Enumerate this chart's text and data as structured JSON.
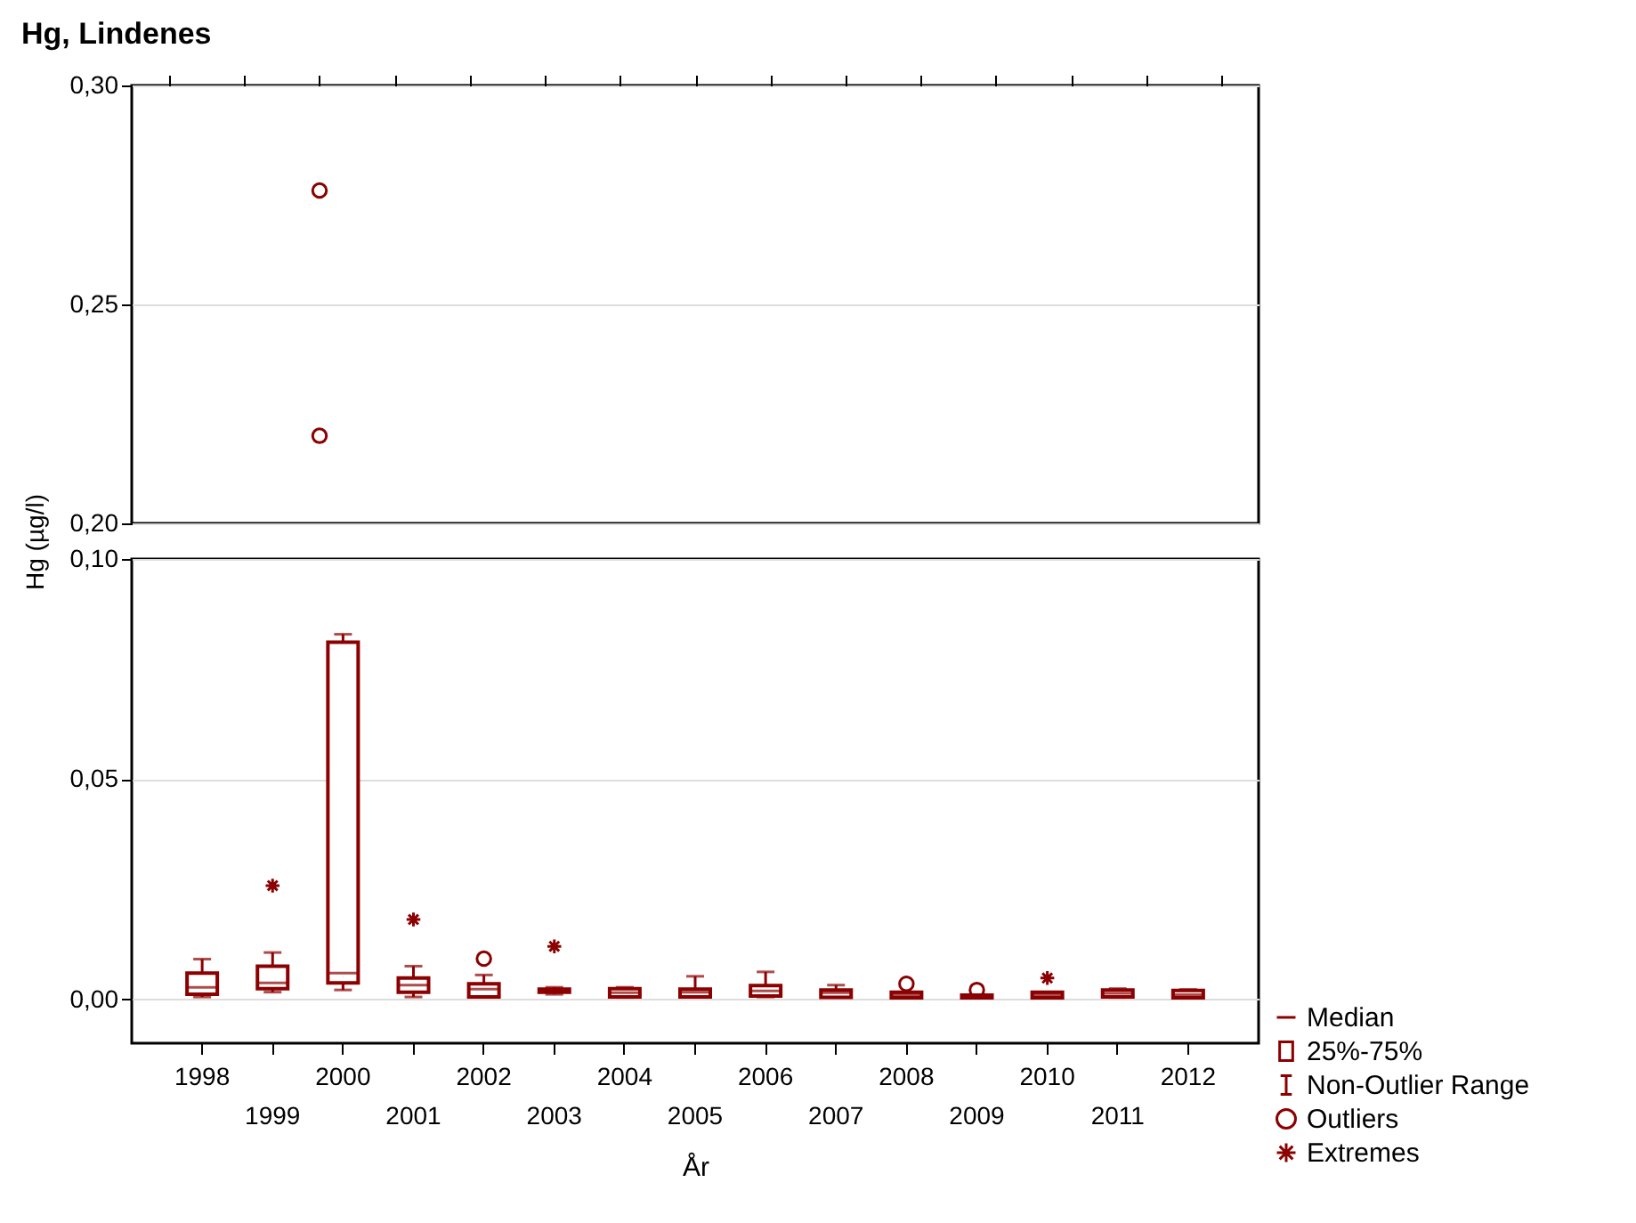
{
  "chart_data": [
    {
      "type": "scatter",
      "title": "Hg, Lindenes",
      "categories": [
        "1998",
        "1999",
        "2000",
        "2001",
        "2002",
        "2003",
        "2004",
        "2005",
        "2006",
        "2007",
        "2008",
        "2009",
        "2010",
        "2011",
        "2012"
      ],
      "ylim": [
        0.2,
        0.3
      ],
      "yticks": [
        {
          "value": 0.2,
          "label": "0,20"
        },
        {
          "value": 0.25,
          "label": "0,25"
        },
        {
          "value": 0.3,
          "label": "0,30"
        }
      ],
      "grid": "y",
      "tick_labels": "y",
      "marker": "circle",
      "series": [
        {
          "color": "#8b0000",
          "values": [
            null,
            null,
            0.276,
            null,
            null,
            null,
            null,
            null,
            null,
            null,
            null,
            null,
            null,
            null,
            null
          ]
        },
        {
          "color": "#8b0000",
          "values": [
            null,
            null,
            0.22,
            null,
            null,
            null,
            null,
            null,
            null,
            null,
            null,
            null,
            null,
            null,
            null
          ]
        }
      ]
    },
    {
      "type": "box",
      "xlabel": "År",
      "ylabel": "Hg (µg/l)",
      "categories": [
        "1998",
        "1999",
        "2000",
        "2001",
        "2002",
        "2003",
        "2004",
        "2005",
        "2006",
        "2007",
        "2008",
        "2009",
        "2010",
        "2011",
        "2012"
      ],
      "ylim": [
        -0.01,
        0.1
      ],
      "yticks": [
        {
          "value": 0,
          "label": "0,00"
        },
        {
          "value": 0.05,
          "label": "0,05"
        },
        {
          "value": 0.1,
          "label": "0,10"
        }
      ],
      "grid": "y",
      "legend": "bottom right",
      "annotations": [
        "Median",
        "Non-Outlier Range"
      ],
      "series": [
        {
          "name": "25%-75%",
          "color": "#8b0000",
          "boxes": [
            {
              "low": 0.0005,
              "q1": 0.0011,
              "median": 0.0027,
              "q3": 0.0059,
              "high": 0.0091
            },
            {
              "low": 0.0016,
              "q1": 0.0024,
              "median": 0.0037,
              "q3": 0.0075,
              "high": 0.0106
            },
            {
              "low": 0.0021,
              "q1": 0.0037,
              "median": 0.0059,
              "q3": 0.0811,
              "high": 0.0829
            },
            {
              "low": 0.0005,
              "q1": 0.0016,
              "median": 0.0032,
              "q3": 0.0048,
              "high": 0.0075
            },
            {
              "low": 0.0005,
              "q1": 0.0005,
              "median": 0.0023,
              "q3": 0.0035,
              "high": 0.0055
            },
            {
              "low": 0.0011,
              "q1": 0.0016,
              "median": 0.002,
              "q3": 0.0023,
              "high": 0.0027
            },
            {
              "low": 0.0004,
              "q1": 0.0005,
              "median": 0.0015,
              "q3": 0.0024,
              "high": 0.0027
            },
            {
              "low": 0.0005,
              "q1": 0.0005,
              "median": 0.0016,
              "q3": 0.0023,
              "high": 0.0052
            },
            {
              "low": 0.0005,
              "q1": 0.0007,
              "median": 0.0019,
              "q3": 0.0031,
              "high": 0.0062
            },
            {
              "low": 0.0004,
              "q1": 0.0004,
              "median": 0.0015,
              "q3": 0.0021,
              "high": 0.0032
            },
            {
              "low": 0.0003,
              "q1": 0.0003,
              "median": 0.001,
              "q3": 0.0016,
              "high": 0.0016
            },
            {
              "low": 0.0003,
              "q1": 0.0003,
              "median": 0.0006,
              "q3": 0.0009,
              "high": 0.0009
            },
            {
              "low": 0.0003,
              "q1": 0.0003,
              "median": 0.001,
              "q3": 0.0016,
              "high": 0.0016
            },
            {
              "low": 0.0004,
              "q1": 0.0005,
              "median": 0.0013,
              "q3": 0.0021,
              "high": 0.0024
            },
            {
              "low": 0.0003,
              "q1": 0.0003,
              "median": 0.001,
              "q3": 0.002,
              "high": 0.0022
            }
          ]
        },
        {
          "type": "scatter",
          "name": "Outliers",
          "color": "#8b0000",
          "marker": "circle",
          "values": [
            null,
            null,
            null,
            null,
            0.0092,
            null,
            null,
            null,
            null,
            null,
            0.0035,
            0.0021,
            null,
            null,
            null
          ]
        },
        {
          "type": "scatter",
          "name": "Extremes",
          "color": "#8b0000",
          "marker": "cross",
          "values": [
            null,
            0.0258,
            null,
            0.0181,
            null,
            0.012,
            null,
            null,
            null,
            null,
            null,
            null,
            0.0048,
            null,
            null
          ]
        }
      ]
    }
  ]
}
